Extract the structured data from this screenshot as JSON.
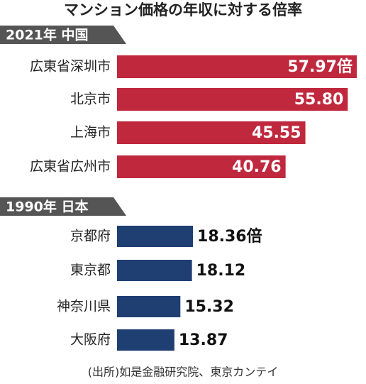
{
  "title": "マンション価格の年収に対する倍率",
  "chart_data": [
    {
      "type": "bar",
      "subtitle": "2021年 中国",
      "categories": [
        "広東省深圳市",
        "北京市",
        "上海市",
        "広東省広州市"
      ],
      "values": [
        57.97,
        55.8,
        45.55,
        40.76
      ],
      "value_labels": [
        "57.97倍",
        "55.80",
        "45.55",
        "40.76"
      ],
      "color": "#c0283e",
      "label_color": "#ffffff",
      "label_position": "inside"
    },
    {
      "type": "bar",
      "subtitle": "1990年 日本",
      "categories": [
        "京都府",
        "東京都",
        "神奈川県",
        "大阪府"
      ],
      "values": [
        18.36,
        18.12,
        15.32,
        13.87
      ],
      "value_labels": [
        "18.36倍",
        "18.12",
        "15.32",
        "13.87"
      ],
      "color": "#1f3f73",
      "label_color": "#111111",
      "label_position": "outside"
    }
  ],
  "source": "(出所)如是金融研究院、東京カンテイ"
}
